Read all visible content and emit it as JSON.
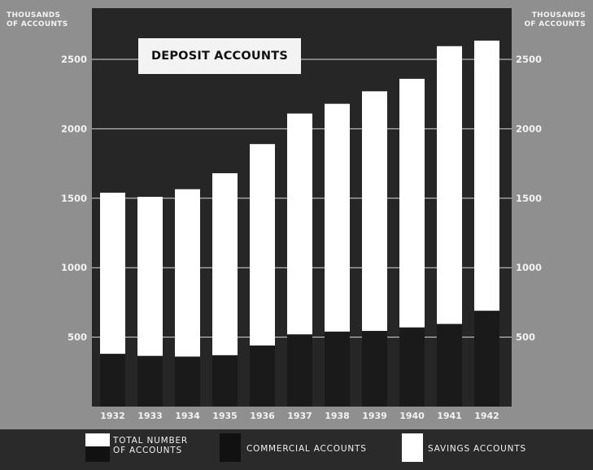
{
  "chart_data": {
    "type": "bar",
    "stacked": true,
    "title": "DEPOSIT ACCOUNTS",
    "ylabel_lines": [
      "THOUSANDS",
      "OF ACCOUNTS"
    ],
    "categories": [
      "1932",
      "1933",
      "1934",
      "1935",
      "1936",
      "1937",
      "1938",
      "1939",
      "1940",
      "1941",
      "1942"
    ],
    "series": [
      {
        "name": "COMMERCIAL ACCOUNTS",
        "color": "#1a1a1a",
        "values": [
          380,
          365,
          360,
          370,
          440,
          520,
          540,
          545,
          570,
          595,
          690
        ]
      },
      {
        "name": "SAVINGS ACCOUNTS",
        "color": "#ffffff",
        "values": [
          1160,
          1145,
          1205,
          1310,
          1450,
          1590,
          1640,
          1725,
          1790,
          2000,
          1945
        ]
      }
    ],
    "totals": [
      1540,
      1510,
      1565,
      1680,
      1890,
      2110,
      2180,
      2270,
      2360,
      2595,
      2635
    ],
    "yticks": [
      500,
      1000,
      1500,
      2000,
      2500
    ],
    "ylim": [
      0,
      2850
    ],
    "grid": true,
    "legend": {
      "placement": "bottom",
      "entries": [
        {
          "label_lines": [
            "TOTAL NUMBER",
            "OF ACCOUNTS"
          ],
          "swatch": "split"
        },
        {
          "label_lines": [
            "COMMERCIAL ACCOUNTS"
          ],
          "swatch": "#1a1a1a"
        },
        {
          "label_lines": [
            "SAVINGS ACCOUNTS"
          ],
          "swatch": "#ffffff"
        }
      ]
    },
    "colors": {
      "panel": "#262626",
      "page": "#8f8f8f",
      "gridline": "#d9d9d9",
      "text": "#f2f2f2"
    }
  }
}
